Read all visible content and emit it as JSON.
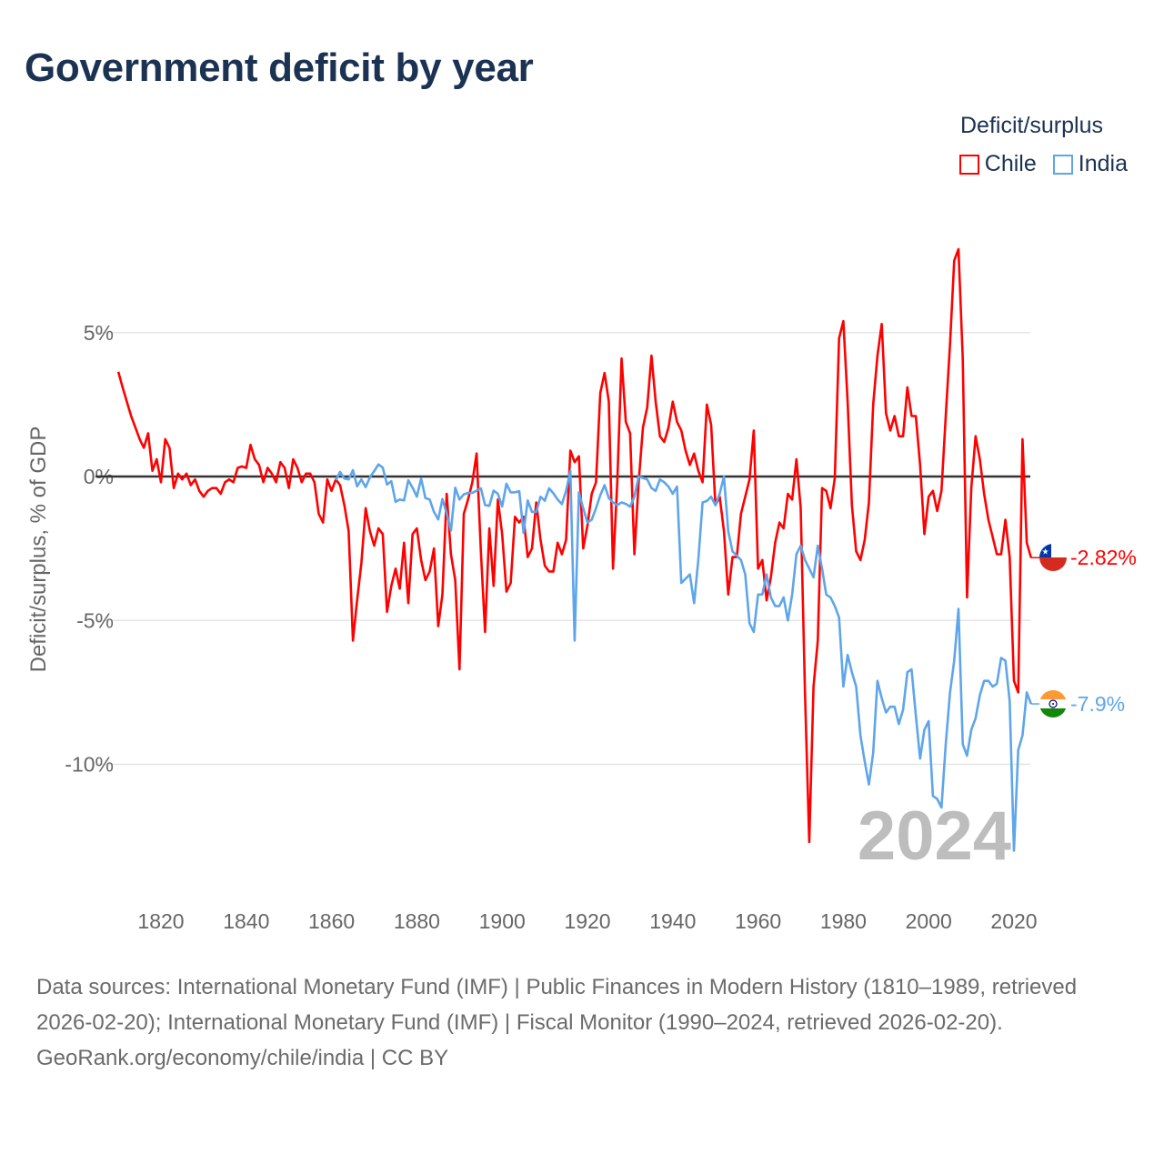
{
  "title": "Government deficit by year",
  "legend": {
    "title": "Deficit/surplus",
    "items": [
      {
        "label": "Chile",
        "color": "#ff0000"
      },
      {
        "label": "India",
        "color": "#5ea5ea"
      }
    ]
  },
  "chart_data": {
    "type": "line",
    "title": "Government deficit by year",
    "xlabel": "",
    "ylabel": "Deficit/surplus, % of GDP",
    "xlim": [
      1810,
      2024
    ],
    "ylim": [
      -13.5,
      8.5
    ],
    "x_ticks": [
      1820,
      1840,
      1860,
      1880,
      1900,
      1920,
      1940,
      1960,
      1980,
      2000,
      2020
    ],
    "x_tick_labels": [
      "1820",
      "1840",
      "1860",
      "1880",
      "1900",
      "1920",
      "1940",
      "1960",
      "1980",
      "2000",
      "2020"
    ],
    "y_ticks": [
      5,
      0,
      -5,
      -10
    ],
    "y_tick_labels": [
      "5%",
      "0%",
      "-5%",
      "-10%"
    ],
    "grid": true,
    "legend_position": "top-right",
    "year_watermark": "2024",
    "series": [
      {
        "name": "Chile",
        "color": "#ff0000",
        "start_year": 1810,
        "end_label": "-2.82%",
        "values": [
          3.64,
          3.1,
          2.6,
          2.1,
          1.7,
          1.3,
          1.0,
          1.5,
          0.2,
          0.6,
          -0.2,
          1.3,
          1.0,
          -0.4,
          0.1,
          -0.1,
          0.1,
          -0.3,
          -0.1,
          -0.5,
          -0.7,
          -0.5,
          -0.4,
          -0.4,
          -0.6,
          -0.2,
          -0.1,
          -0.2,
          0.3,
          0.35,
          0.3,
          1.1,
          0.6,
          0.4,
          -0.2,
          0.3,
          0.1,
          -0.2,
          0.5,
          0.3,
          -0.4,
          0.6,
          0.3,
          -0.2,
          0.1,
          0.1,
          -0.2,
          -1.3,
          -1.6,
          -0.1,
          -0.5,
          -0.1,
          -0.3,
          -1.0,
          -1.9,
          -5.7,
          -4.3,
          -3.0,
          -1.1,
          -1.9,
          -2.4,
          -1.8,
          -2.0,
          -4.7,
          -3.8,
          -3.2,
          -3.9,
          -2.3,
          -4.4,
          -2.0,
          -1.8,
          -2.9,
          -3.6,
          -3.3,
          -2.5,
          -5.2,
          -4.1,
          -0.6,
          -2.7,
          -3.6,
          -6.7,
          -1.3,
          -0.8,
          -0.2,
          0.8,
          -2.6,
          -5.4,
          -1.8,
          -3.8,
          -0.8,
          -2.0,
          -4.0,
          -3.7,
          -1.4,
          -1.6,
          -1.4,
          -2.8,
          -2.5,
          -0.9,
          -2.2,
          -3.1,
          -3.3,
          -3.3,
          -2.3,
          -2.7,
          -2.2,
          0.9,
          0.5,
          0.7,
          -2.5,
          -1.7,
          -0.6,
          -0.2,
          2.9,
          3.6,
          2.6,
          -3.2,
          -0.2,
          4.1,
          1.9,
          1.5,
          -2.7,
          -0.2,
          1.7,
          2.4,
          4.2,
          2.6,
          1.4,
          1.2,
          1.7,
          2.6,
          1.9,
          1.6,
          0.9,
          0.4,
          0.8,
          0.2,
          -0.2,
          2.5,
          1.8,
          -1.0,
          -0.7,
          -1.9,
          -4.1,
          -2.8,
          -2.8,
          -1.3,
          -0.7,
          -0.1,
          1.6,
          -3.2,
          -2.9,
          -4.3,
          -3.5,
          -2.3,
          -1.6,
          -1.8,
          -0.6,
          -0.8,
          0.6,
          -1.1,
          -7.5,
          -12.7,
          -7.3,
          -5.7,
          -0.4,
          -0.5,
          -1.1,
          -0.05,
          4.8,
          5.4,
          2.6,
          -1.0,
          -2.6,
          -2.9,
          -2.2,
          -0.9,
          2.5,
          4.2,
          5.3,
          2.2,
          1.6,
          2.1,
          1.4,
          1.4,
          3.1,
          2.1,
          2.1,
          0.4,
          -2.0,
          -0.7,
          -0.5,
          -1.2,
          -0.5,
          2.1,
          4.6,
          7.5,
          7.9,
          4.1,
          -4.2,
          -0.4,
          1.4,
          0.6,
          -0.6,
          -1.5,
          -2.1,
          -2.7,
          -2.7,
          -1.5,
          -2.8,
          -7.1,
          -7.5,
          1.3,
          -2.3,
          -2.82
        ]
      },
      {
        "name": "India",
        "color": "#5ea5ea",
        "start_year": 1861,
        "end_label": "-7.9%",
        "values": [
          -0.13,
          0.16,
          -0.07,
          -0.1,
          0.22,
          -0.34,
          -0.1,
          -0.37,
          -0.03,
          0.19,
          0.42,
          0.31,
          -0.28,
          -0.16,
          -0.88,
          -0.8,
          -0.83,
          -0.13,
          -0.39,
          -0.7,
          -0.07,
          -0.75,
          -0.8,
          -1.23,
          -1.49,
          -0.78,
          -1.28,
          -1.88,
          -0.39,
          -0.8,
          -0.62,
          -0.57,
          -0.57,
          -0.49,
          -0.41,
          -0.99,
          -1.02,
          -0.49,
          -0.6,
          -1.04,
          -0.25,
          -0.55,
          -0.55,
          -0.51,
          -1.96,
          -0.83,
          -1.23,
          -1.23,
          -0.7,
          -0.84,
          -0.41,
          -0.58,
          -0.8,
          -0.96,
          -0.5,
          0.2,
          -5.7,
          -0.55,
          -1.1,
          -1.6,
          -1.5,
          -1.1,
          -0.65,
          -0.3,
          -0.75,
          -0.9,
          -1.0,
          -0.9,
          -0.95,
          -1.05,
          -0.7,
          0.0,
          -0.05,
          -0.1,
          -0.4,
          -0.5,
          -0.1,
          -0.2,
          -0.35,
          -0.6,
          -0.35,
          -3.7,
          -3.55,
          -3.4,
          -4.4,
          -2.9,
          -0.9,
          -0.85,
          -0.7,
          -1.0,
          -0.6,
          0.0,
          -1.9,
          -2.6,
          -2.75,
          -2.9,
          -3.4,
          -5.1,
          -5.4,
          -4.1,
          -4.1,
          -3.4,
          -4.2,
          -4.5,
          -4.5,
          -4.2,
          -5.0,
          -4.1,
          -2.7,
          -2.4,
          -2.9,
          -3.2,
          -3.5,
          -2.4,
          -3.2,
          -4.1,
          -4.2,
          -4.5,
          -4.9,
          -7.3,
          -6.2,
          -6.8,
          -7.3,
          -9.0,
          -9.9,
          -10.7,
          -9.6,
          -7.1,
          -7.7,
          -8.2,
          -8.0,
          -8.0,
          -8.6,
          -8.1,
          -6.8,
          -6.7,
          -8.3,
          -9.8,
          -8.8,
          -8.5,
          -11.1,
          -11.2,
          -11.5,
          -9.3,
          -7.5,
          -6.4,
          -4.6,
          -9.3,
          -9.7,
          -8.8,
          -8.4,
          -7.6,
          -7.1,
          -7.1,
          -7.3,
          -7.2,
          -6.3,
          -6.4,
          -7.8,
          -13.0,
          -9.5,
          -9.0,
          -7.5,
          -7.9
        ]
      }
    ]
  },
  "footer": {
    "sources": "Data sources: International Monetary Fund (IMF) | Public Finances in Modern History (1810–1989, retrieved 2026-02-20); International Monetary Fund (IMF) | Fiscal Monitor (1990–2024, retrieved 2026-02-20).",
    "credit": "GeoRank.org/economy/chile/india | CC BY"
  }
}
